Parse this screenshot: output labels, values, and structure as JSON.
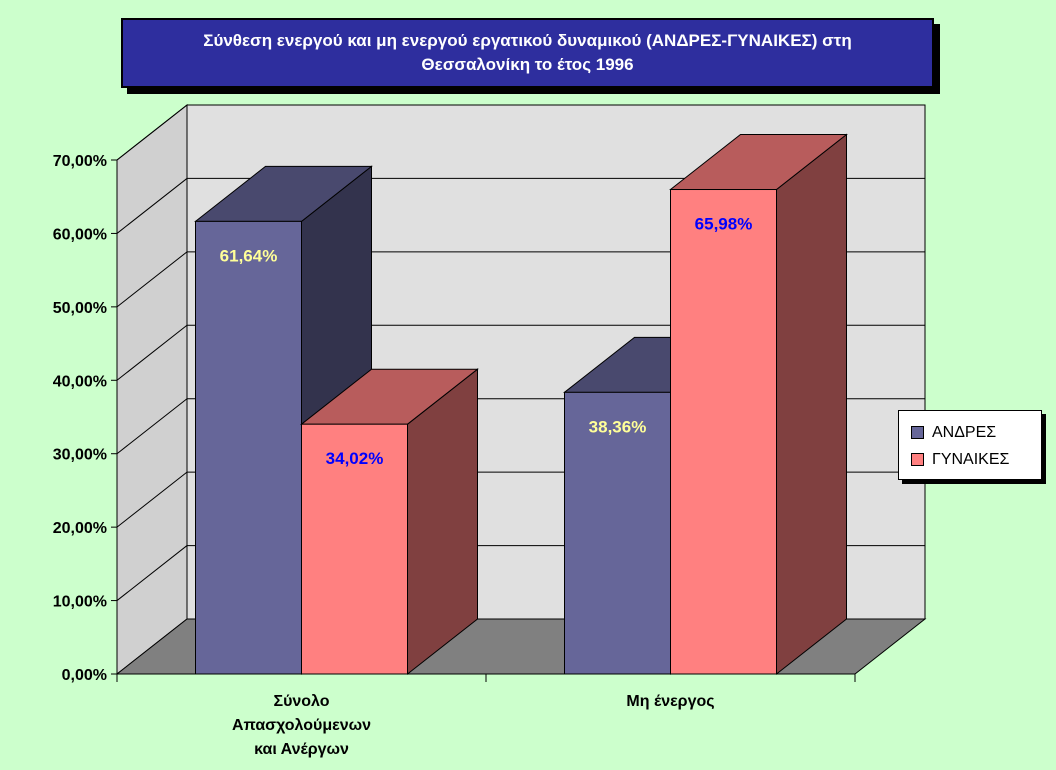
{
  "title": {
    "line1": "Σύνθεση ενεργού και μη ενεργού εργατικού δυναμικού (ΑΝΔΡΕΣ-ΓΥΝΑΙΚΕΣ) στη",
    "line2": "Θεσσαλονίκη το έτος 1996"
  },
  "legend": {
    "items": [
      {
        "label": "ΑΝΔΡΕΣ",
        "color": "#666699"
      },
      {
        "label": "ΓΥΝΑΙΚΕΣ",
        "color": "#ff8080"
      }
    ]
  },
  "chart_data": {
    "type": "bar",
    "style": "3d-clustered-column",
    "categories": [
      [
        "Σύνολο",
        "Απασχολούμενων",
        "και Ανέργων"
      ],
      [
        "Μη ένεργος"
      ]
    ],
    "series": [
      {
        "name": "ΑΝΔΡΕΣ",
        "values": [
          61.64,
          38.36
        ],
        "value_labels": [
          "61,64%",
          "38,36%"
        ],
        "color": "#666699",
        "label_color": "#ffff99"
      },
      {
        "name": "ΓΥΝΑΙΚΕΣ",
        "values": [
          34.02,
          65.98
        ],
        "value_labels": [
          "34,02%",
          "65,98%"
        ],
        "color": "#ff8080",
        "label_color": "#0000ff"
      }
    ],
    "y_ticks": [
      "0,00%",
      "10,00%",
      "20,00%",
      "30,00%",
      "40,00%",
      "50,00%",
      "60,00%",
      "70,00%"
    ],
    "ylim": [
      0,
      70
    ],
    "grid": true,
    "legend_position": "right"
  }
}
